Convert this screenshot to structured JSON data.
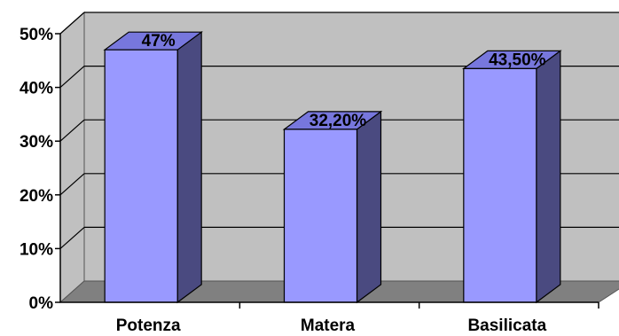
{
  "chart_data": {
    "type": "bar",
    "three_d": true,
    "categories": [
      "Potenza",
      "Matera",
      "Basilicata"
    ],
    "values": [
      47,
      32.2,
      43.5
    ],
    "data_labels": [
      "47%",
      "32,20%",
      "43,50%"
    ],
    "ylim": [
      0,
      50
    ],
    "yticks": [
      "0%",
      "10%",
      "20%",
      "30%",
      "40%",
      "50%"
    ],
    "grid": true,
    "legend": "none",
    "colors": {
      "bar_front": "#9999ff",
      "bar_top": "#7777dd",
      "bar_side": "#4a4a80",
      "back_wall": "#c0c0c0",
      "floor": "#808080",
      "gridline": "#000000"
    }
  }
}
